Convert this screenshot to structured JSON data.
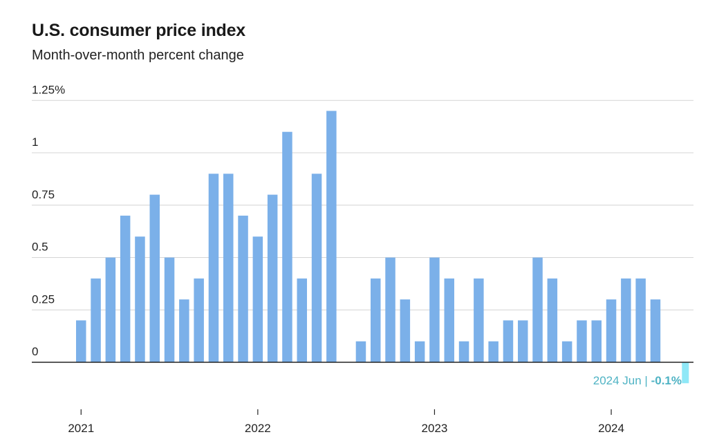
{
  "header": {
    "title": "U.S. consumer price index",
    "subtitle": "Month-over-month percent change"
  },
  "colors": {
    "bar": "#7bb0e9",
    "bar_highlight": "#8fe8f7",
    "gridline": "#d4d4d4",
    "axis": "#222222",
    "annotation": "#4fb3c4"
  },
  "chart_data": {
    "type": "bar",
    "title": "U.S. consumer price index",
    "subtitle": "Month-over-month percent change",
    "xlabel": "",
    "ylabel": "",
    "ylim": [
      -0.1,
      1.25
    ],
    "yticks": [
      0,
      0.25,
      0.5,
      0.75,
      1,
      1.25
    ],
    "ytick_labels": [
      "0",
      "0.25",
      "0.5",
      "0.75",
      "1",
      "1.25%"
    ],
    "xticks": [
      "2021",
      "2022",
      "2023",
      "2024"
    ],
    "grid": true,
    "legend": "none",
    "categories": [
      "2021-01",
      "2021-02",
      "2021-03",
      "2021-04",
      "2021-05",
      "2021-06",
      "2021-07",
      "2021-08",
      "2021-09",
      "2021-10",
      "2021-11",
      "2021-12",
      "2022-01",
      "2022-02",
      "2022-03",
      "2022-04",
      "2022-05",
      "2022-06",
      "2022-07",
      "2022-08",
      "2022-09",
      "2022-10",
      "2022-11",
      "2022-12",
      "2023-01",
      "2023-02",
      "2023-03",
      "2023-04",
      "2023-05",
      "2023-06",
      "2023-07",
      "2023-08",
      "2023-09",
      "2023-10",
      "2023-11",
      "2023-12",
      "2024-01",
      "2024-02",
      "2024-03",
      "2024-04",
      "2024-05",
      "2024-06"
    ],
    "values": [
      0.2,
      0.4,
      0.5,
      0.7,
      0.6,
      0.8,
      0.5,
      0.3,
      0.4,
      0.9,
      0.9,
      0.7,
      0.6,
      0.8,
      1.1,
      0.4,
      0.9,
      1.2,
      0.0,
      0.1,
      0.4,
      0.5,
      0.3,
      0.1,
      0.5,
      0.4,
      0.1,
      0.4,
      0.1,
      0.2,
      0.2,
      0.5,
      0.4,
      0.1,
      0.2,
      0.2,
      0.3,
      0.4,
      0.4,
      0.3,
      0.0,
      -0.1
    ],
    "highlight": {
      "label": "2024 Jun |",
      "value_label": "-0.1%"
    }
  }
}
